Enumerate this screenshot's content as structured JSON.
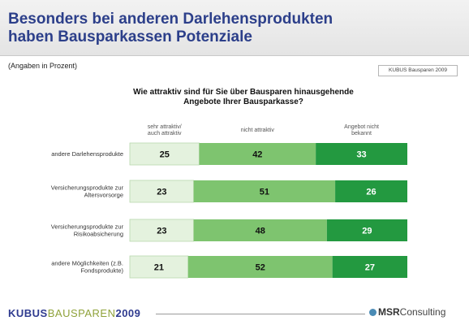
{
  "slide": {
    "title_lines": [
      "Besonders bei anderen Darlehensprodukten",
      "haben Bausparkassen Potenziale"
    ],
    "unit_note": "(Angaben in Prozent)",
    "source_box": "KUBUS Bausparen 2009",
    "question_lines": [
      "Wie attraktiv sind für Sie über Bausparen hinausgehende",
      "Angebote Ihrer Bausparkasse?"
    ]
  },
  "colors": {
    "title": "#2c3f8a",
    "series": [
      "#e4f2de",
      "#7ec46f",
      "#239940"
    ]
  },
  "chart_data": {
    "type": "bar",
    "orientation": "horizontal",
    "stacked": true,
    "categories": [
      [
        "andere Darlehensprodukte"
      ],
      [
        "Versicherungsprodukte zur",
        "Altersvorsorge"
      ],
      [
        "Versicherungsprodukte zur",
        "Risikoabsicherung"
      ],
      [
        "andere Möglichkeiten (z.B.",
        "Fondsprodukte)"
      ]
    ],
    "series": [
      {
        "name": [
          "sehr attraktiv/",
          "auch attraktiv"
        ],
        "values": [
          25,
          23,
          23,
          21
        ]
      },
      {
        "name": [
          "nicht attraktiv"
        ],
        "values": [
          42,
          51,
          48,
          52
        ]
      },
      {
        "name": [
          "Angebot nicht",
          "bekannt"
        ],
        "values": [
          33,
          26,
          29,
          27
        ]
      }
    ],
    "xlim": [
      0,
      100
    ],
    "legend_position": "top",
    "grid": false
  },
  "footer": {
    "brand_part1": "KUBUS",
    "brand_part2": "BAUSPAREN",
    "brand_part3": "2009",
    "company_part1": "MSR",
    "company_part2": "Consulting"
  }
}
